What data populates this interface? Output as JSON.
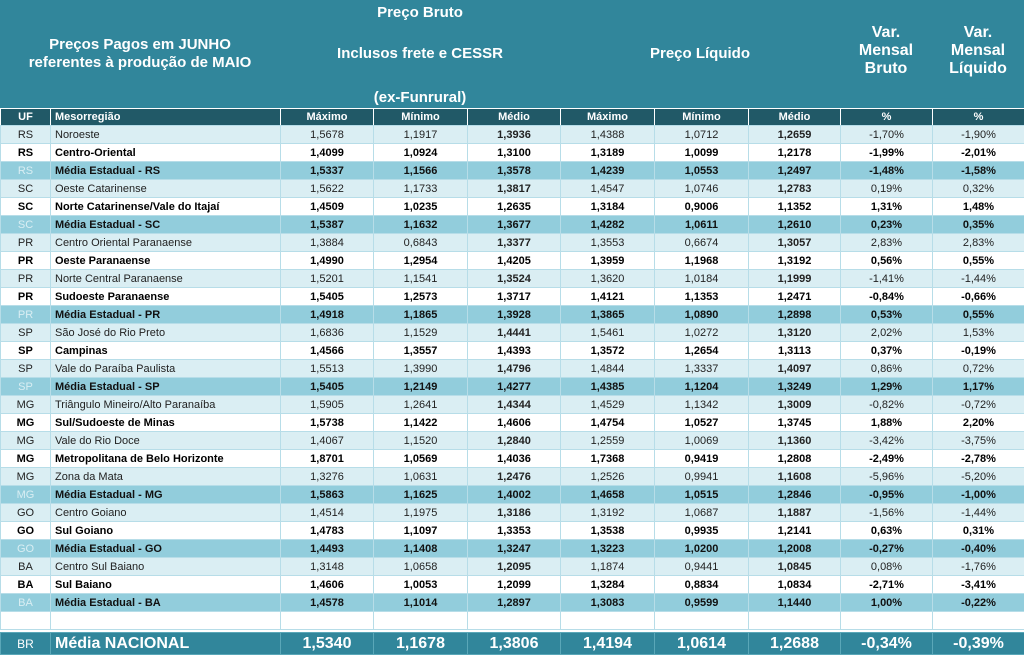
{
  "header": {
    "title_lines": [
      "Preços Pagos em JUNHO",
      "referentes à produção de MAIO"
    ],
    "gross_price": "Preço Bruto",
    "gross_note": "Inclusos frete e CESSR",
    "gross_note2": "(ex-Funrural)",
    "net_price": "Preço Líquido",
    "var_gross": "Var. Mensal Bruto",
    "var_net": "Var. Mensal Líquido"
  },
  "table": {
    "columns": [
      "UF",
      "Mesorregião",
      "Máximo",
      "Mínimo",
      "Médio",
      "Máximo",
      "Mínimo",
      "Médio",
      "%",
      "%"
    ],
    "rows": [
      [
        "RS",
        "Noroeste",
        "1,5678",
        "1,1917",
        "1,3936",
        "1,4388",
        "1,0712",
        "1,2659",
        "-1,70%",
        "-1,90%"
      ],
      [
        "RS",
        "Centro-Oriental",
        "1,4099",
        "1,0924",
        "1,3100",
        "1,3189",
        "1,0099",
        "1,2178",
        "-1,99%",
        "-2,01%"
      ],
      [
        "RS",
        "Média Estadual - RS",
        "1,5337",
        "1,1566",
        "1,3578",
        "1,4239",
        "1,0553",
        "1,2497",
        "-1,48%",
        "-1,58%"
      ],
      [
        "SC",
        "Oeste Catarinense",
        "1,5622",
        "1,1733",
        "1,3817",
        "1,4547",
        "1,0746",
        "1,2783",
        "0,19%",
        "0,32%"
      ],
      [
        "SC",
        "Norte Catarinense/Vale do Itajaí",
        "1,4509",
        "1,0235",
        "1,2635",
        "1,3184",
        "0,9006",
        "1,1352",
        "1,31%",
        "1,48%"
      ],
      [
        "SC",
        "Média Estadual - SC",
        "1,5387",
        "1,1632",
        "1,3677",
        "1,4282",
        "1,0611",
        "1,2610",
        "0,23%",
        "0,35%"
      ],
      [
        "PR",
        "Centro Oriental Paranaense",
        "1,3884",
        "0,6843",
        "1,3377",
        "1,3553",
        "0,6674",
        "1,3057",
        "2,83%",
        "2,83%"
      ],
      [
        "PR",
        "Oeste Paranaense",
        "1,4990",
        "1,2954",
        "1,4205",
        "1,3959",
        "1,1968",
        "1,3192",
        "0,56%",
        "0,55%"
      ],
      [
        "PR",
        "Norte Central Paranaense",
        "1,5201",
        "1,1541",
        "1,3524",
        "1,3620",
        "1,0184",
        "1,1999",
        "-1,41%",
        "-1,44%"
      ],
      [
        "PR",
        "Sudoeste Paranaense",
        "1,5405",
        "1,2573",
        "1,3717",
        "1,4121",
        "1,1353",
        "1,2471",
        "-0,84%",
        "-0,66%"
      ],
      [
        "PR",
        "Média Estadual - PR",
        "1,4918",
        "1,1865",
        "1,3928",
        "1,3865",
        "1,0890",
        "1,2898",
        "0,53%",
        "0,55%"
      ],
      [
        "SP",
        "São José do Rio Preto",
        "1,6836",
        "1,1529",
        "1,4441",
        "1,5461",
        "1,0272",
        "1,3120",
        "2,02%",
        "1,53%"
      ],
      [
        "SP",
        "Campinas",
        "1,4566",
        "1,3557",
        "1,4393",
        "1,3572",
        "1,2654",
        "1,3113",
        "0,37%",
        "-0,19%"
      ],
      [
        "SP",
        "Vale do Paraíba Paulista",
        "1,5513",
        "1,3990",
        "1,4796",
        "1,4844",
        "1,3337",
        "1,4097",
        "0,86%",
        "0,72%"
      ],
      [
        "SP",
        "Média Estadual - SP",
        "1,5405",
        "1,2149",
        "1,4277",
        "1,4385",
        "1,1204",
        "1,3249",
        "1,29%",
        "1,17%"
      ],
      [
        "MG",
        "Triângulo Mineiro/Alto Paranaíba",
        "1,5905",
        "1,2641",
        "1,4344",
        "1,4529",
        "1,1342",
        "1,3009",
        "-0,82%",
        "-0,72%"
      ],
      [
        "MG",
        "Sul/Sudoeste de Minas",
        "1,5738",
        "1,1422",
        "1,4606",
        "1,4754",
        "1,0527",
        "1,3745",
        "1,88%",
        "2,20%"
      ],
      [
        "MG",
        "Vale do Rio Doce",
        "1,4067",
        "1,1520",
        "1,2840",
        "1,2559",
        "1,0069",
        "1,1360",
        "-3,42%",
        "-3,75%"
      ],
      [
        "MG",
        "Metropolitana de Belo Horizonte",
        "1,8701",
        "1,0569",
        "1,4036",
        "1,7368",
        "0,9419",
        "1,2808",
        "-2,49%",
        "-2,78%"
      ],
      [
        "MG",
        "Zona da Mata",
        "1,3276",
        "1,0631",
        "1,2476",
        "1,2526",
        "0,9941",
        "1,1608",
        "-5,96%",
        "-5,20%"
      ],
      [
        "MG",
        "Média Estadual - MG",
        "1,5863",
        "1,1625",
        "1,4002",
        "1,4658",
        "1,0515",
        "1,2846",
        "-0,95%",
        "-1,00%"
      ],
      [
        "GO",
        "Centro Goiano",
        "1,4514",
        "1,1975",
        "1,3186",
        "1,3192",
        "1,0687",
        "1,1887",
        "-1,56%",
        "-1,44%"
      ],
      [
        "GO",
        "Sul Goiano",
        "1,4783",
        "1,1097",
        "1,3353",
        "1,3538",
        "0,9935",
        "1,2141",
        "0,63%",
        "0,31%"
      ],
      [
        "GO",
        "Média Estadual - GO",
        "1,4493",
        "1,1408",
        "1,3247",
        "1,3223",
        "1,0200",
        "1,2008",
        "-0,27%",
        "-0,40%"
      ],
      [
        "BA",
        "Centro Sul Baiano",
        "1,3148",
        "1,0658",
        "1,2095",
        "1,1874",
        "0,9441",
        "1,0845",
        "0,08%",
        "-1,76%"
      ],
      [
        "BA",
        "Sul Baiano",
        "1,4606",
        "1,0053",
        "1,2099",
        "1,3284",
        "0,8834",
        "1,0834",
        "-2,71%",
        "-3,41%"
      ],
      [
        "BA",
        "Média Estadual - BA",
        "1,4578",
        "1,1014",
        "1,2897",
        "1,3083",
        "0,9599",
        "1,1440",
        "1,00%",
        "-0,22%"
      ]
    ],
    "footer": [
      "BR",
      "Média NACIONAL",
      "1,5340",
      "1,1678",
      "1,3806",
      "1,4194",
      "1,0614",
      "1,2688",
      "-0,34%",
      "-0,39%"
    ]
  }
}
